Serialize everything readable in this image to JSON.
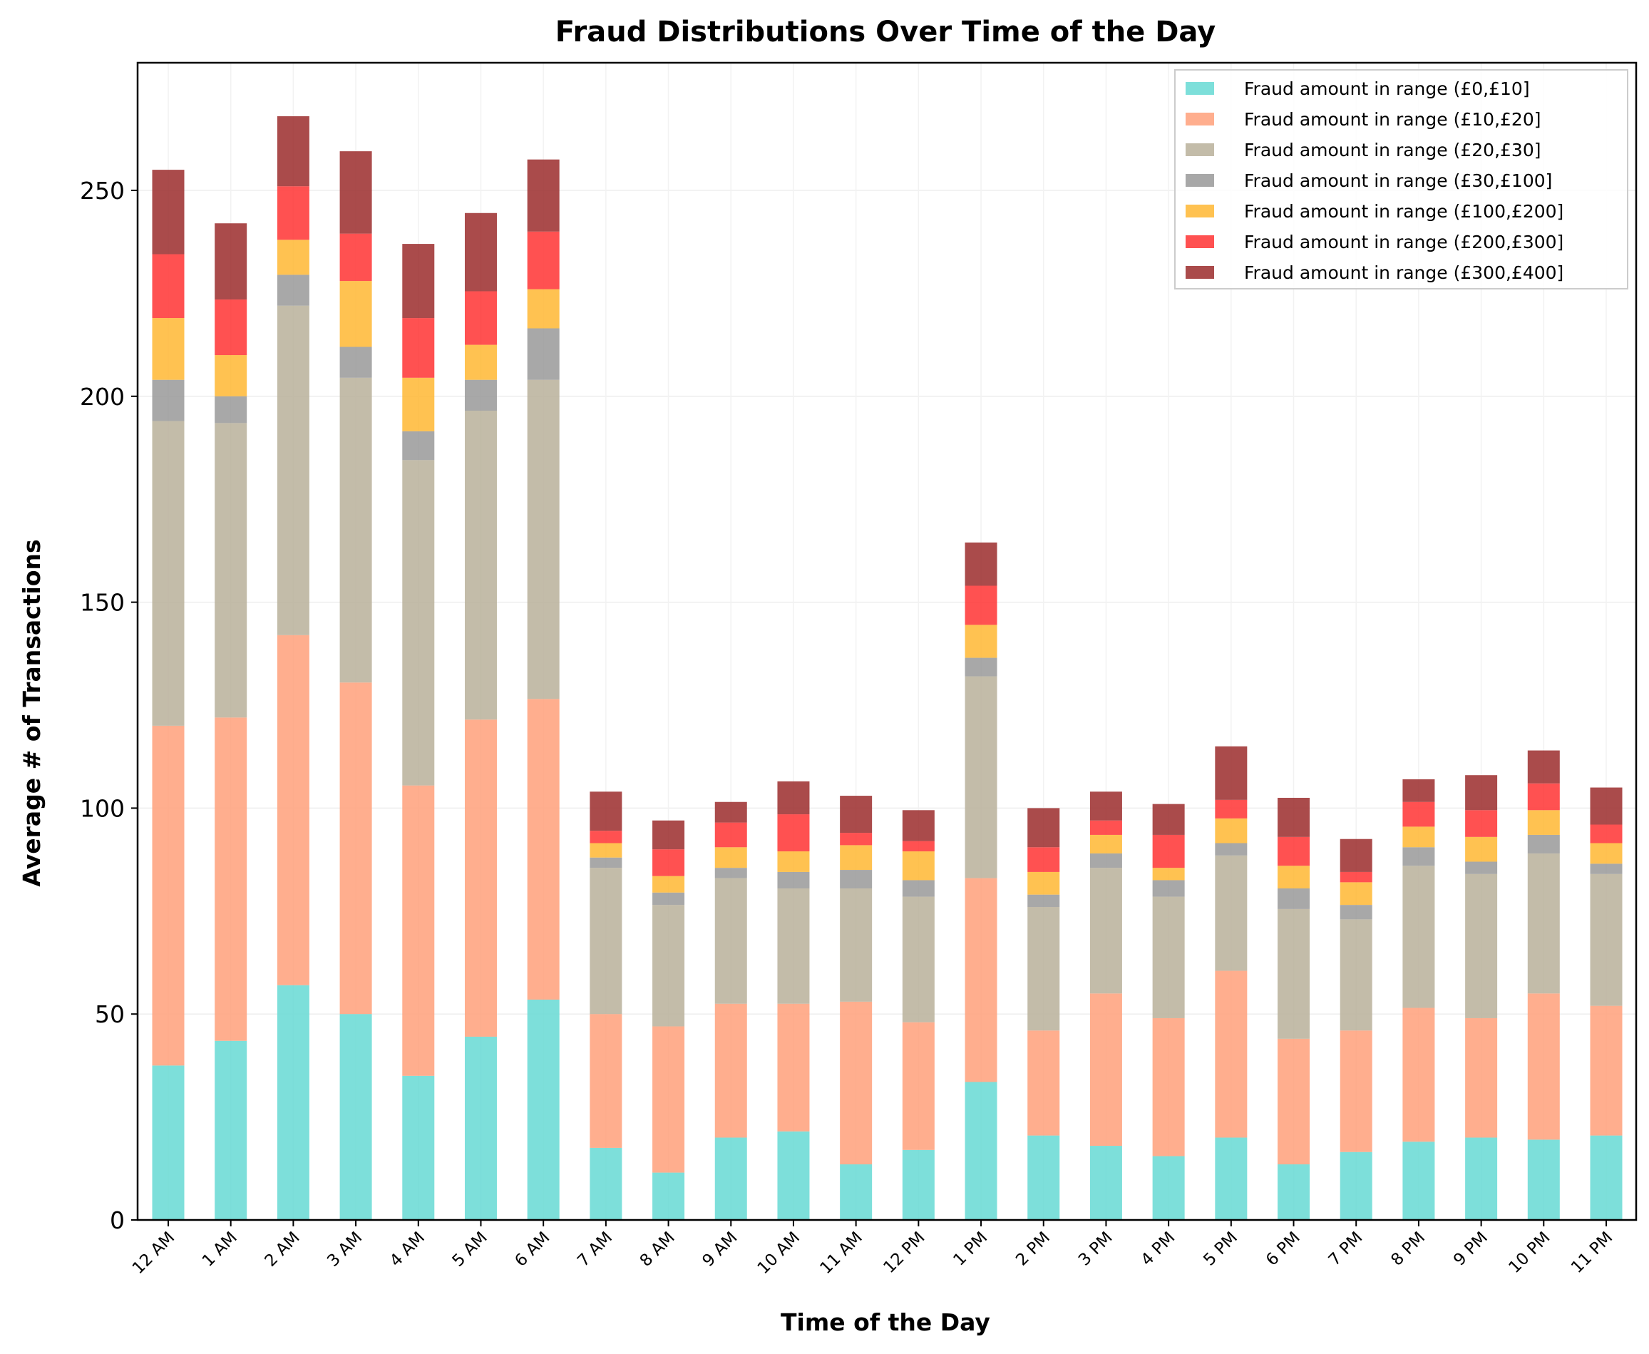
{
  "chart_data": {
    "type": "bar",
    "stacked": true,
    "title": "Fraud Distributions Over Time of the Day",
    "xlabel": "Time of the Day",
    "ylabel": "Average # of Transactions",
    "ylim": [
      0,
      282
    ],
    "yticks": [
      0,
      50,
      100,
      150,
      200,
      250
    ],
    "grid": true,
    "legend_position": "top-right",
    "categories": [
      "12 AM",
      "1 AM",
      "2 AM",
      "3 AM",
      "4 AM",
      "5 AM",
      "6 AM",
      "7 AM",
      "8 AM",
      "9 AM",
      "10 AM",
      "11 AM",
      "12 PM",
      "1 PM",
      "2 PM",
      "3 PM",
      "4 PM",
      "5 PM",
      "6 PM",
      "7 PM",
      "8 PM",
      "9 PM",
      "10 PM",
      "11 PM"
    ],
    "series": [
      {
        "name": "Fraud amount in range (£0,£10]",
        "color": "#66d9d3",
        "values": [
          37.5,
          43.5,
          57,
          50,
          35,
          44.5,
          53.5,
          17.5,
          11.5,
          20,
          21.5,
          13.5,
          17,
          33.5,
          20.5,
          18,
          15.5,
          20,
          13.5,
          16.5,
          19,
          20,
          19.5,
          20.5
        ]
      },
      {
        "name": "Fraud amount in range (£10,£20]",
        "color": "#ffa07a",
        "values": [
          82.5,
          78.5,
          85,
          80.5,
          70.5,
          77,
          73,
          32.5,
          35.5,
          32.5,
          31,
          39.5,
          31,
          49.5,
          25.5,
          37,
          33.5,
          40.5,
          30.5,
          29.5,
          32.5,
          29,
          35.5,
          31.5
        ]
      },
      {
        "name": "Fraud amount in range (£20,£30]",
        "color": "#b8b09a",
        "values": [
          74,
          71.5,
          80,
          74,
          79,
          75,
          77.5,
          35.5,
          29.5,
          30.5,
          28,
          27.5,
          30.5,
          49,
          30,
          30.5,
          29.5,
          28,
          31.5,
          27,
          34.5,
          35,
          34,
          32
        ]
      },
      {
        "name": "Fraud amount in range (£30,£100]",
        "color": "#999999",
        "values": [
          10,
          6.5,
          7.5,
          7.5,
          7,
          7.5,
          12.5,
          2.5,
          3,
          2.5,
          4,
          4.5,
          4,
          4.5,
          3,
          3.5,
          4,
          3,
          5,
          3.5,
          4.5,
          3,
          4.5,
          2.5
        ]
      },
      {
        "name": "Fraud amount in range (£100,£200]",
        "color": "#ffb732",
        "values": [
          15,
          10,
          8.5,
          16,
          13,
          8.5,
          9.5,
          3.5,
          4,
          5,
          5,
          6,
          7,
          8,
          5.5,
          4.5,
          3,
          6,
          5.5,
          5.5,
          5,
          6,
          6,
          5
        ]
      },
      {
        "name": "Fraud amount in range (£200,£300]",
        "color": "#ff3333",
        "values": [
          15.5,
          13.5,
          13,
          11.5,
          14.5,
          13,
          14,
          3,
          6.5,
          6,
          9,
          3,
          2.5,
          9.5,
          6,
          3.5,
          8,
          4.5,
          7,
          2.5,
          6,
          6.5,
          6.5,
          4.5
        ]
      },
      {
        "name": "Fraud amount in range (£300,£400]",
        "color": "#9b2c2c",
        "values": [
          20.5,
          18.5,
          17,
          20,
          18,
          19,
          17.5,
          9.5,
          7,
          5,
          8,
          9,
          7.5,
          10.5,
          9.5,
          7,
          7.5,
          13,
          9.5,
          8,
          5.5,
          8.5,
          8,
          9
        ]
      }
    ]
  }
}
